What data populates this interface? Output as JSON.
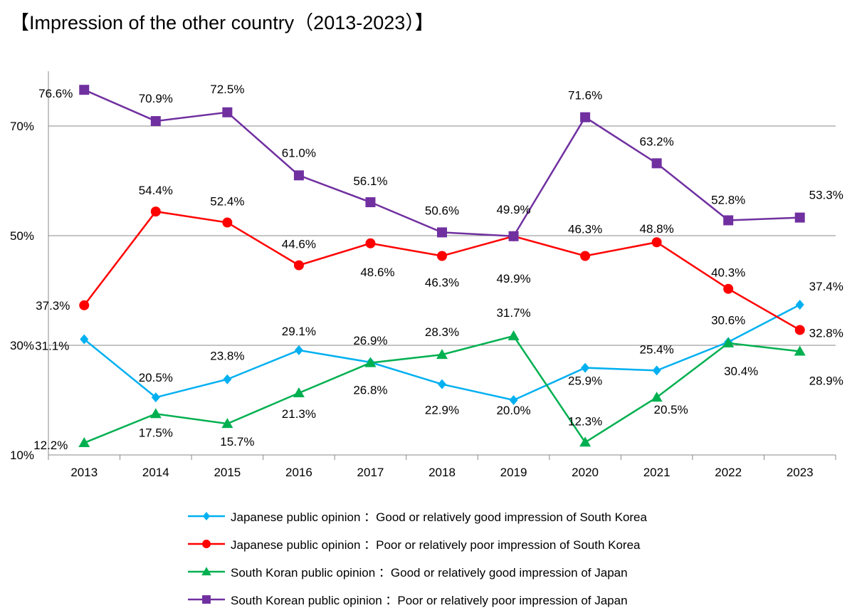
{
  "chart_data": {
    "type": "line",
    "title": "【Impression of the other country（2013-2023）】",
    "categories": [
      "2013",
      "2014",
      "2015",
      "2016",
      "2017",
      "2018",
      "2019",
      "2020",
      "2021",
      "2022",
      "2023"
    ],
    "ylim": [
      10,
      80
    ],
    "yticks": [
      10,
      30,
      50,
      70
    ],
    "ytick_labels": [
      "10%",
      "30%",
      "50%",
      "70%"
    ],
    "grid": true,
    "legend_placement": "bottom",
    "series": [
      {
        "name": "Japanese public opinion ：Good or relatively good impression of South Korea",
        "color": "#00b0f0",
        "marker": "diamond",
        "values": [
          31.1,
          20.5,
          23.8,
          29.1,
          26.9,
          22.9,
          20.0,
          25.9,
          25.4,
          30.6,
          37.4
        ],
        "labels": [
          "31.1%",
          "20.5%",
          "23.8%",
          "29.1%",
          "26.9%",
          "22.9%",
          "20.0%",
          "25.9%",
          "25.4%",
          "30.6%",
          "37.4%"
        ]
      },
      {
        "name": "Japanese public opinion ：Poor or relatively poor impression of South Korea",
        "color": "#ff0000",
        "marker": "circle",
        "values": [
          37.3,
          54.4,
          52.4,
          44.6,
          48.6,
          46.3,
          49.9,
          46.3,
          48.8,
          40.3,
          32.8
        ],
        "labels": [
          "37.3%",
          "54.4%",
          "52.4%",
          "44.6%",
          "48.6%",
          "46.3%",
          "49.9%",
          "46.3%",
          "48.8%",
          "40.3%",
          "32.8%"
        ]
      },
      {
        "name": "South Koran public opinion ：Good or relatively good impression of Japan",
        "color": "#00b050",
        "marker": "triangle",
        "values": [
          12.2,
          17.5,
          15.7,
          21.3,
          26.8,
          28.3,
          31.7,
          12.3,
          20.5,
          30.4,
          28.9
        ],
        "labels": [
          "12.2%",
          "17.5%",
          "15.7%",
          "21.3%",
          "26.8%",
          "28.3%",
          "31.7%",
          "12.3%",
          "20.5%",
          "30.4%",
          "28.9%"
        ]
      },
      {
        "name": "South Korean public opinion ：Poor or relatively poor impression of Japan",
        "color": "#7030a0",
        "marker": "square",
        "values": [
          76.6,
          70.9,
          72.5,
          61.0,
          56.1,
          50.6,
          49.9,
          71.6,
          63.2,
          52.8,
          53.3
        ],
        "labels": [
          "76.6%",
          "70.9%",
          "72.5%",
          "61.0%",
          "56.1%",
          "50.6%",
          "49.9%",
          "71.6%",
          "63.2%",
          "52.8%",
          "53.3%"
        ]
      }
    ]
  }
}
